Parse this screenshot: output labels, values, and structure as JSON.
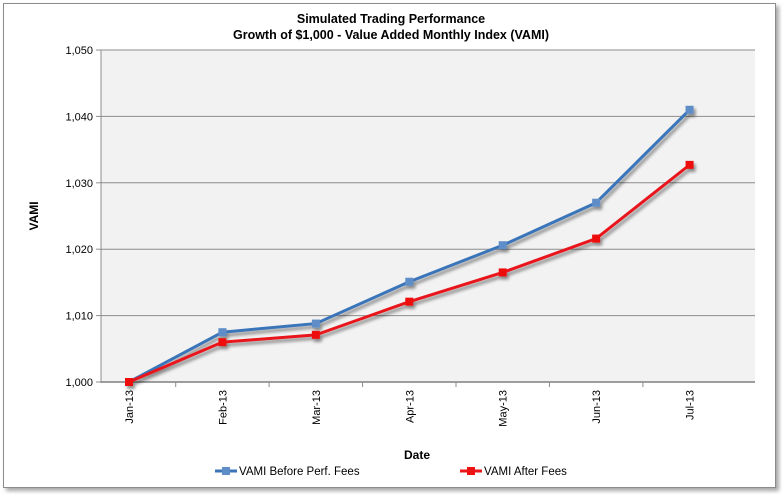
{
  "chart_data": {
    "type": "line",
    "title": "Simulated Trading Performance",
    "subtitle": "Growth of $1,000 - Value Added Monthly Index (VAMI)",
    "xlabel": "Date",
    "ylabel": "VAMI",
    "categories": [
      "Jan-13",
      "Feb-13",
      "Mar-13",
      "Apr-13",
      "May-13",
      "Jun-13",
      "Jul-13"
    ],
    "ylim": [
      1000,
      1050
    ],
    "yticks": [
      1000,
      1010,
      1020,
      1030,
      1040,
      1050
    ],
    "ytick_labels": [
      "1,000",
      "1,010",
      "1,020",
      "1,030",
      "1,040",
      "1,050"
    ],
    "grid": true,
    "legend_position": "bottom",
    "series": [
      {
        "name": "VAMI Before Perf. Fees",
        "color": "#3b74b9",
        "marker_color": "#5f8dc8",
        "values": [
          1000,
          1007.5,
          1008.8,
          1015.1,
          1020.6,
          1027.0,
          1041.0
        ]
      },
      {
        "name": "VAMI After Fees",
        "color": "#e8171b",
        "marker_color": "#ee1111",
        "values": [
          1000,
          1006.0,
          1007.1,
          1012.1,
          1016.5,
          1021.6,
          1032.7
        ]
      }
    ]
  },
  "colors": {
    "plot_background": "#f2f2f2",
    "gridline": "#8c8c8c"
  }
}
